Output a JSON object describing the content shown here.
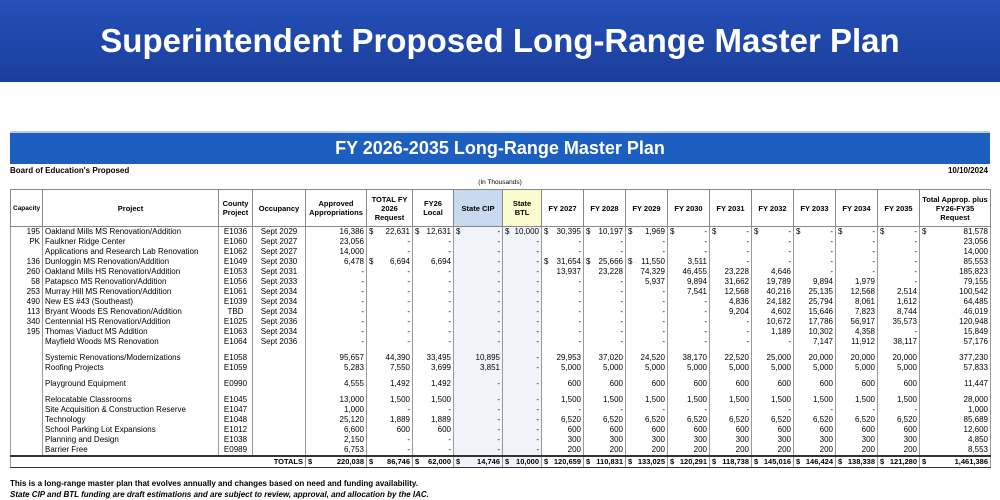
{
  "header": {
    "title": "Superintendent Proposed Long-Range Master Plan"
  },
  "plan": {
    "title": "FY 2026-2035 Long-Range Master Plan",
    "subtitle": "Board of Education's Proposed",
    "date": "10/10/2024",
    "units": "(In Thousands)"
  },
  "table": {
    "columns": [
      "Capacity",
      "Project",
      "County Project",
      "Occupancy",
      "Approved Appropriations",
      "TOTAL FY 2026 Request",
      "FY26 Local",
      "State CIP",
      "State BTL",
      "FY 2027",
      "FY 2028",
      "FY 2029",
      "FY 2030",
      "FY 2031",
      "FY 2032",
      "FY 2033",
      "FY 2034",
      "FY 2035",
      "Total Approp. plus FY26-FY35 Request"
    ],
    "sections": [
      [
        [
          "195",
          "Oakland Mills MS Renovation/Addition",
          "E1036",
          "Sept 2029",
          "16,386",
          "$ 22,631",
          "$ 12,631",
          "$ -",
          "$ 10,000",
          "$ 30,395",
          "$ 10,197",
          "$ 1,969",
          "$ -",
          "$ -",
          "$ -",
          "$ -",
          "$ -",
          "$ -",
          "$ 81,578"
        ],
        [
          "PK",
          "Faulkner Ridge Center",
          "E1060",
          "Sept 2027",
          "23,056",
          "-",
          "-",
          "-",
          "-",
          "-",
          "-",
          "-",
          "-",
          "-",
          "-",
          "-",
          "-",
          "-",
          "23,056"
        ],
        [
          null,
          "Applications and Research Lab Renovation",
          "E1062",
          "Sept 2027",
          "14,000",
          "-",
          "-",
          "-",
          "-",
          "-",
          "-",
          "-",
          "-",
          "-",
          "-",
          "-",
          "-",
          "-",
          "14,000"
        ],
        [
          "136",
          "Dunloggin MS Renovation/Addition",
          "E1049",
          "Sept 2030",
          "6,478",
          "$ 6,694",
          "6,694",
          "-",
          "-",
          "$ 31,654",
          "$ 25,666",
          "$ 11,550",
          "3,511",
          "-",
          "-",
          "-",
          "-",
          "-",
          "85,553"
        ],
        [
          "260",
          "Oakland Mills HS Renovation/Addition",
          "E1053",
          "Sept 2031",
          "-",
          "-",
          "-",
          "-",
          "-",
          "13,937",
          "23,228",
          "74,329",
          "46,455",
          "23,228",
          "4,646",
          "-",
          "-",
          "-",
          "185,823"
        ],
        [
          "58",
          "Patapsco MS Renovation/Addition",
          "E1056",
          "Sept 2033",
          "-",
          "-",
          "-",
          "-",
          "-",
          "-",
          "-",
          "5,937",
          "9,894",
          "31,662",
          "19,789",
          "9,894",
          "1,979",
          "-",
          "79,155"
        ],
        [
          "253",
          "Murray Hill MS Renovation/Addition",
          "E1061",
          "Sept 2034",
          "-",
          "-",
          "-",
          "-",
          "-",
          "-",
          "-",
          "-",
          "7,541",
          "12,568",
          "40,216",
          "25,135",
          "12,568",
          "2,514",
          "100,542"
        ],
        [
          "490",
          "New ES #43 (Southeast)",
          "E1039",
          "Sept 2034",
          "-",
          "-",
          "-",
          "-",
          "-",
          "-",
          "-",
          "-",
          "-",
          "4,836",
          "24,182",
          "25,794",
          "8,061",
          "1,612",
          "64,485"
        ],
        [
          "113",
          "Bryant Woods ES Renovation/Addition",
          "TBD",
          "Sept 2034",
          "-",
          "-",
          "-",
          "-",
          "-",
          "-",
          "-",
          "-",
          "-",
          "9,204",
          "4,602",
          "15,646",
          "7,823",
          "8,744",
          "46,019"
        ],
        [
          "340",
          "Centennial HS Renovation/Addition",
          "E1025",
          "Sept 2036",
          "-",
          "-",
          "-",
          "-",
          "-",
          "-",
          "-",
          "-",
          "-",
          "-",
          "10,672",
          "17,786",
          "56,917",
          "35,573",
          "120,948"
        ],
        [
          "195",
          "Thomas Viaduct MS Addition",
          "E1063",
          "Sept 2034",
          "-",
          "-",
          "-",
          "-",
          "-",
          "-",
          "-",
          "-",
          "-",
          "-",
          "1,189",
          "10,302",
          "4,358",
          "-",
          "15,849"
        ],
        [
          null,
          "Mayfield Woods MS Renovation",
          "E1064",
          "Sept 2036",
          "-",
          "-",
          "-",
          "-",
          "-",
          "-",
          "-",
          "-",
          "-",
          "-",
          "-",
          "7,147",
          "11,912",
          "38,117",
          "57,176"
        ]
      ],
      [
        [
          null,
          "Systemic Renovations/Modernizations",
          "E1058",
          null,
          "95,657",
          "44,390",
          "33,495",
          "10,895",
          "-",
          "29,953",
          "37,020",
          "24,520",
          "38,170",
          "22,520",
          "25,000",
          "20,000",
          "20,000",
          "20,000",
          "377,230"
        ],
        [
          null,
          "Roofing Projects",
          "E1059",
          null,
          "5,283",
          "7,550",
          "3,699",
          "3,851",
          "-",
          "5,000",
          "5,000",
          "5,000",
          "5,000",
          "5,000",
          "5,000",
          "5,000",
          "5,000",
          "5,000",
          "57,833"
        ]
      ],
      [
        [
          null,
          "Playground Equipment",
          "E0990",
          null,
          "4,555",
          "1,492",
          "1,492",
          "-",
          "-",
          "600",
          "600",
          "600",
          "600",
          "600",
          "600",
          "600",
          "600",
          "600",
          "11,447"
        ]
      ],
      [
        [
          null,
          "Relocatable Classrooms",
          "E1045",
          null,
          "13,000",
          "1,500",
          "1,500",
          "-",
          "-",
          "1,500",
          "1,500",
          "1,500",
          "1,500",
          "1,500",
          "1,500",
          "1,500",
          "1,500",
          "1,500",
          "28,000"
        ],
        [
          null,
          "Site Acquisition & Construction Reserve",
          "E1047",
          null,
          "1,000",
          "-",
          "-",
          "-",
          "-",
          "-",
          "-",
          "-",
          "-",
          "-",
          "-",
          "-",
          "-",
          "-",
          "1,000"
        ],
        [
          null,
          "Technology",
          "E1048",
          null,
          "25,120",
          "1,889",
          "1,889",
          "-",
          "-",
          "6,520",
          "6,520",
          "6,520",
          "6,520",
          "6,520",
          "6,520",
          "6,520",
          "6,520",
          "6,520",
          "85,689"
        ],
        [
          null,
          "School Parking Lot Expansions",
          "E1012",
          null,
          "6,600",
          "600",
          "600",
          "-",
          "-",
          "600",
          "600",
          "600",
          "600",
          "600",
          "600",
          "600",
          "600",
          "600",
          "12,600"
        ],
        [
          null,
          "Planning and Design",
          "E1038",
          null,
          "2,150",
          "-",
          "-",
          "-",
          "-",
          "300",
          "300",
          "300",
          "300",
          "300",
          "300",
          "300",
          "300",
          "300",
          "4,850"
        ],
        [
          null,
          "Barrier Free",
          "E0989",
          null,
          "6,753",
          "-",
          "-",
          "-",
          "-",
          "200",
          "200",
          "200",
          "200",
          "200",
          "200",
          "200",
          "200",
          "200",
          "8,553"
        ]
      ]
    ],
    "totals": {
      "label": "TOTALS",
      "cells": [
        "$ 220,038",
        "$ 86,746",
        "$ 62,000",
        "$ 14,746",
        "$ 10,000",
        "$ 120,659",
        "$ 110,831",
        "$ 133,025",
        "$ 120,291",
        "$ 118,738",
        "$ 145,016",
        "$ 146,424",
        "$ 138,338",
        "$ 121,280",
        "$ 1,461,386"
      ]
    }
  },
  "footnotes": [
    "This is a long-range master plan that evolves annually and changes based on need and funding availability.",
    "State CIP and BTL funding are draft estimations and are subject to review, approval, and allocation by the IAC."
  ]
}
